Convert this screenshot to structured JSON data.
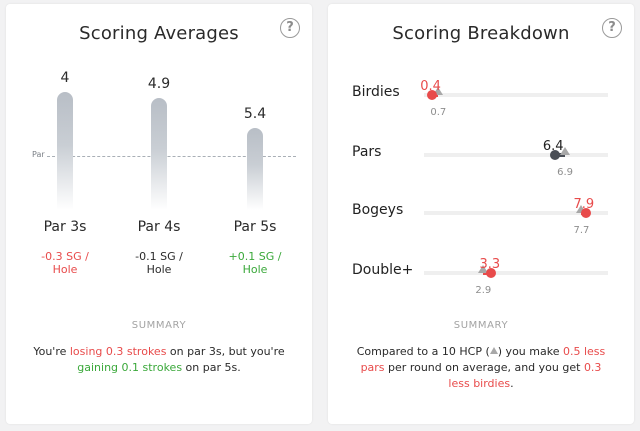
{
  "scoring_averages": {
    "title": "Scoring Averages",
    "par_label": "Par",
    "columns": [
      {
        "label": "Par 3s",
        "value": "4",
        "sg": "-0.3 SG / Hole",
        "sg_color": "#e84b4b"
      },
      {
        "label": "Par 4s",
        "value": "4.9",
        "sg": "-0.1 SG / Hole",
        "sg_color": "#2a2a2a"
      },
      {
        "label": "Par 5s",
        "value": "5.4",
        "sg": "+0.1 SG / Hole",
        "sg_color": "#3aa83a"
      }
    ],
    "summary_heading": "SUMMARY",
    "summary": {
      "p1": "You're ",
      "hl1": "losing 0.3 strokes",
      "p2": " on par 3s, but you're ",
      "hl2": "gaining 0.1 strokes",
      "p3": " on par 5s."
    }
  },
  "scoring_breakdown": {
    "title": "Scoring Breakdown",
    "scale_max": 9,
    "rows": [
      {
        "label": "Birdies",
        "value": 0.4,
        "value_text": "0.4",
        "benchmark": 0.7,
        "benchmark_text": "0.7",
        "color": "#e84b4b"
      },
      {
        "label": "Pars",
        "value": 6.4,
        "value_text": "6.4",
        "benchmark": 6.9,
        "benchmark_text": "6.9",
        "color": "#4a4e56"
      },
      {
        "label": "Bogeys",
        "value": 7.9,
        "value_text": "7.9",
        "benchmark": 7.7,
        "benchmark_text": "7.7",
        "color": "#e84b4b"
      },
      {
        "label": "Double+",
        "value": 3.3,
        "value_text": "3.3",
        "benchmark": 2.9,
        "benchmark_text": "2.9",
        "color": "#e84b4b"
      }
    ],
    "summary_heading": "SUMMARY",
    "summary": {
      "p1": "Compared to a 10 HCP (",
      "p2": ") you make ",
      "hl1": "0.5 less pars",
      "p3": " per round on average, and you get ",
      "hl2": "0.3 less birdies",
      "p4": "."
    }
  },
  "help_glyph": "?"
}
